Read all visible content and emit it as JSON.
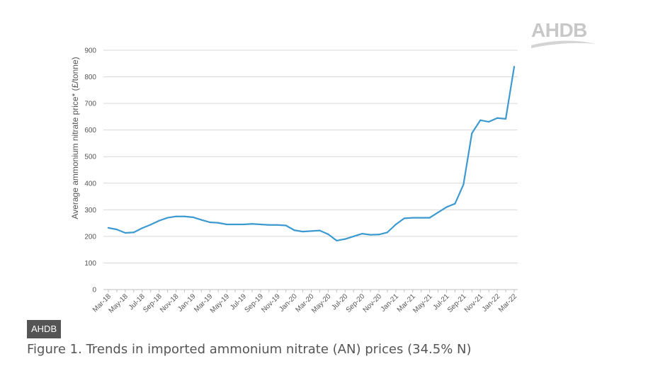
{
  "logo": {
    "text": "AHDB"
  },
  "source_badge": "AHDB",
  "caption": "Figure 1. Trends in imported ammonium nitrate (AN) prices (34.5% N)",
  "chart_data": {
    "type": "line",
    "title": "",
    "xlabel": "",
    "ylabel": "Average ammonium nitrate price* (£/tonne)",
    "ylim": [
      0,
      900
    ],
    "yticks": [
      0,
      100,
      200,
      300,
      400,
      500,
      600,
      700,
      800,
      900
    ],
    "grid": true,
    "legend": "none",
    "line_color": "#3d9ad1",
    "x": [
      "Mar-18",
      "Apr-18",
      "May-18",
      "Jun-18",
      "Jul-18",
      "Aug-18",
      "Sep-18",
      "Oct-18",
      "Nov-18",
      "Dec-18",
      "Jan-19",
      "Feb-19",
      "Mar-19",
      "Apr-19",
      "May-19",
      "Jun-19",
      "Jul-19",
      "Aug-19",
      "Sep-19",
      "Oct-19",
      "Nov-19",
      "Dec-19",
      "Jan-20",
      "Feb-20",
      "Mar-20",
      "Apr-20",
      "May-20",
      "Jun-20",
      "Jul-20",
      "Aug-20",
      "Sep-20",
      "Oct-20",
      "Nov-20",
      "Dec-20",
      "Jan-21",
      "Feb-21",
      "Mar-21",
      "Apr-21",
      "May-21",
      "Jun-21",
      "Jul-21",
      "Aug-21",
      "Sep-21",
      "Oct-21",
      "Nov-21",
      "Dec-21",
      "Jan-22",
      "Feb-22",
      "Mar-22"
    ],
    "xtick_labels": [
      "Mar-18",
      "May-18",
      "Jul-18",
      "Sep-18",
      "Nov-18",
      "Jan-19",
      "Mar-19",
      "May-19",
      "Jul-19",
      "Sep-19",
      "Nov-19",
      "Jan-20",
      "Mar-20",
      "May-20",
      "Jul-20",
      "Sep-20",
      "Nov-20",
      "Jan-21",
      "Mar-21",
      "May-21",
      "Jul-21",
      "Sep-21",
      "Nov-21",
      "Jan-22",
      "Mar-22"
    ],
    "series": [
      {
        "values": [
          232,
          226,
          213,
          215,
          231,
          244,
          259,
          270,
          275,
          275,
          272,
          262,
          253,
          251,
          245,
          245,
          245,
          247,
          245,
          243,
          243,
          241,
          223,
          218,
          220,
          222,
          208,
          184,
          190,
          200,
          210,
          206,
          207,
          215,
          245,
          268,
          270,
          270,
          270,
          290,
          310,
          323,
          395,
          588,
          637,
          631,
          645,
          642,
          838
        ]
      }
    ]
  }
}
